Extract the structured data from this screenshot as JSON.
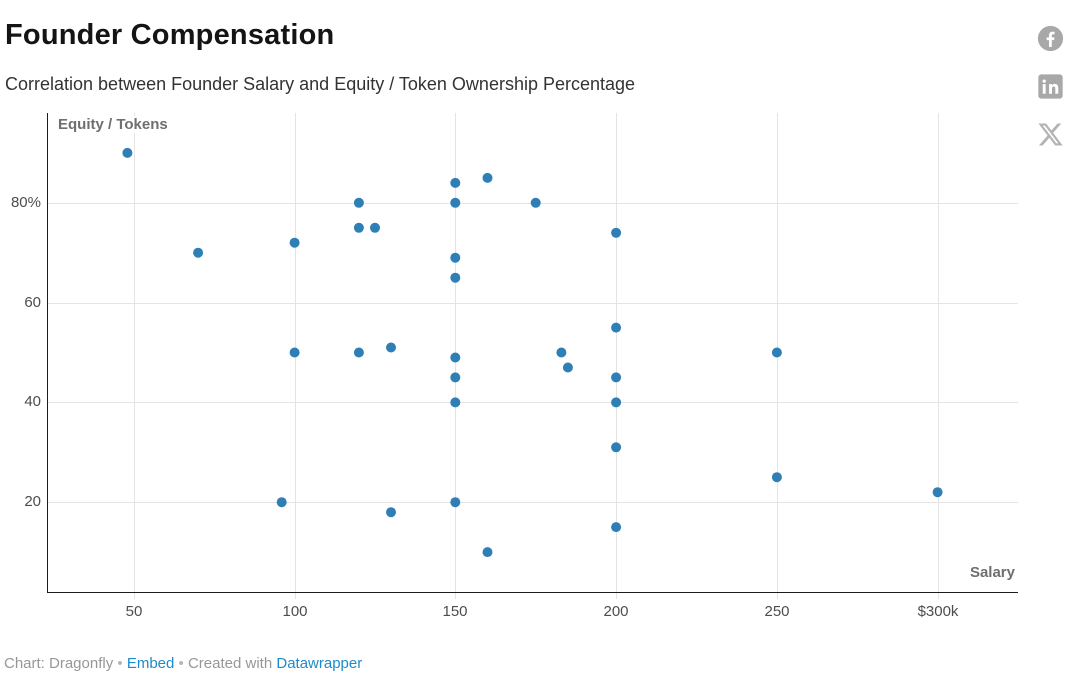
{
  "header": {
    "title": "Founder Compensation",
    "subtitle": "Correlation between Founder Salary and Equity / Token Ownership Percentage"
  },
  "share": {
    "icons": [
      "facebook-icon",
      "linkedin-icon",
      "x-icon"
    ],
    "icon_color": "#a8a8a8"
  },
  "footer": {
    "credit": "Chart: Dragonfly",
    "sep": "•",
    "embed_label": "Embed",
    "created_with": "Created with",
    "datawrapper_label": "Datawrapper",
    "link_color": "#1d8bc9"
  },
  "colors": {
    "point": "#2d7fb5",
    "axis_line": "#1c1c1c",
    "gridline": "#e4e4e4",
    "tick_text": "#4d4d4d"
  },
  "chart_data": {
    "type": "scatter",
    "title": "Founder Compensation",
    "subtitle": "Correlation between Founder Salary and Equity / Token Ownership Percentage",
    "xlabel": "Salary",
    "ylabel": "Equity / Tokens",
    "x_unit_note": "salary in $ thousands, last tick labeled $300k",
    "y_unit_note": "equity/token ownership in percent, top tick labeled 80%",
    "xlim": [
      23,
      325
    ],
    "ylim": [
      2,
      98
    ],
    "grid": true,
    "x_ticks": [
      {
        "value": 50,
        "label": "50"
      },
      {
        "value": 100,
        "label": "100"
      },
      {
        "value": 150,
        "label": "150"
      },
      {
        "value": 200,
        "label": "200"
      },
      {
        "value": 250,
        "label": "250"
      },
      {
        "value": 300,
        "label": "$300k"
      }
    ],
    "y_ticks": [
      {
        "value": 20,
        "label": "20"
      },
      {
        "value": 40,
        "label": "40"
      },
      {
        "value": 60,
        "label": "60"
      },
      {
        "value": 80,
        "label": "80%"
      }
    ],
    "points": [
      [
        48,
        90
      ],
      [
        70,
        70
      ],
      [
        96,
        20
      ],
      [
        100,
        50
      ],
      [
        100,
        72
      ],
      [
        120,
        50
      ],
      [
        120,
        75
      ],
      [
        120,
        80
      ],
      [
        125,
        75
      ],
      [
        130,
        18
      ],
      [
        130,
        51
      ],
      [
        150,
        20
      ],
      [
        150,
        40
      ],
      [
        150,
        45
      ],
      [
        150,
        49
      ],
      [
        150,
        65
      ],
      [
        150,
        69
      ],
      [
        150,
        80
      ],
      [
        150,
        84
      ],
      [
        160,
        10
      ],
      [
        160,
        85
      ],
      [
        175,
        80
      ],
      [
        183,
        50
      ],
      [
        185,
        47
      ],
      [
        200,
        15
      ],
      [
        200,
        31
      ],
      [
        200,
        40
      ],
      [
        200,
        45
      ],
      [
        200,
        55
      ],
      [
        200,
        74
      ],
      [
        250,
        25
      ],
      [
        250,
        50
      ],
      [
        300,
        22
      ]
    ],
    "point_color": "#2d7fb5"
  }
}
